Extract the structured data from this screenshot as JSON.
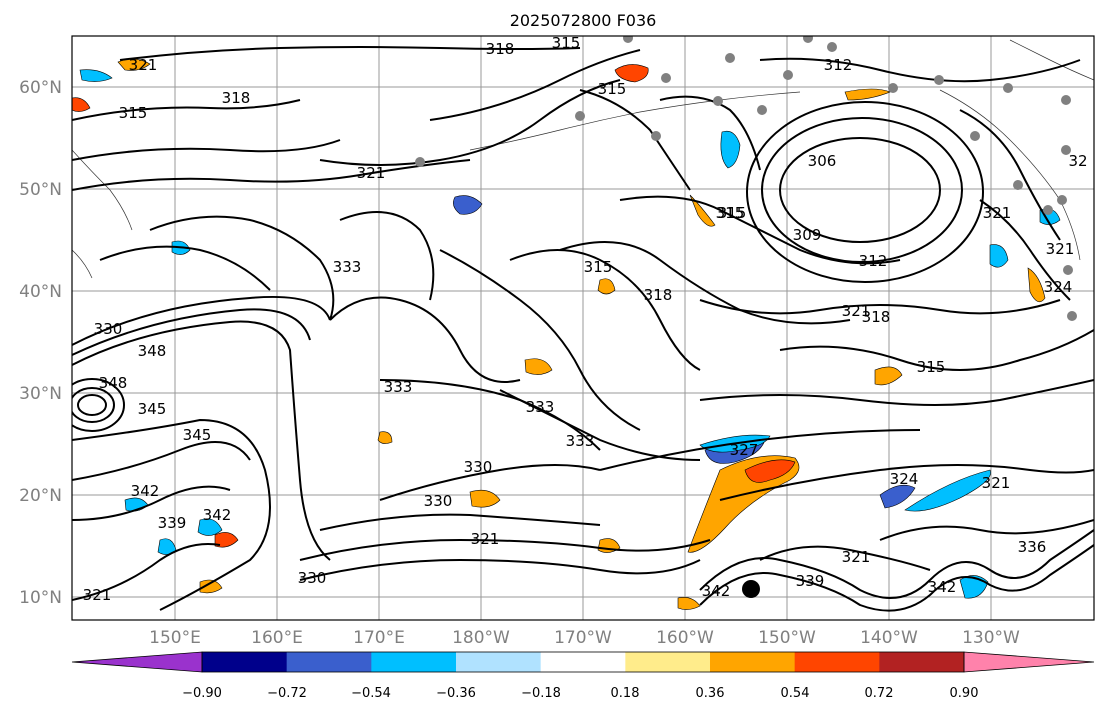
{
  "title": "2025072800 F036",
  "lat_labels": [
    "60°N",
    "50°N",
    "40°N",
    "30°N",
    "20°N",
    "10°N"
  ],
  "lon_labels": [
    "150°E",
    "160°E",
    "170°E",
    "180°W",
    "170°W",
    "160°W",
    "150°W",
    "140°W",
    "130°W"
  ],
  "colorbar": {
    "tick_labels": [
      "−0.90",
      "−0.72",
      "−0.54",
      "−0.36",
      "−0.18",
      "0.18",
      "0.36",
      "0.54",
      "0.72",
      "0.90"
    ],
    "colors": [
      "#9a32cd",
      "#00008b",
      "#3a5fcd",
      "#00bfff",
      "#b0e2ff",
      "#ffffff",
      "#ffec8b",
      "#ffa500",
      "#ff4500",
      "#b22222",
      "#ff82ab"
    ]
  },
  "contour_labels": [
    "321",
    "315",
    "318",
    "318",
    "315",
    "315",
    "312",
    "315",
    "321",
    "306",
    "315",
    "309",
    "312",
    "321",
    "333",
    "333",
    "315",
    "318",
    "321",
    "318",
    "330",
    "348",
    "348",
    "345",
    "345",
    "333",
    "333",
    "315",
    "330",
    "330",
    "342",
    "339",
    "342",
    "321",
    "330",
    "327",
    "324",
    "321",
    "321",
    "339",
    "342",
    "321",
    "342",
    "336",
    "321",
    "324",
    "32"
  ]
}
